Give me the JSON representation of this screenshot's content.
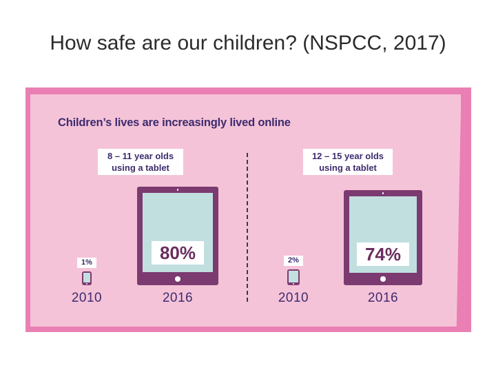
{
  "slide": {
    "title": "How safe are our children? (NSPCC, 2017)"
  },
  "colors": {
    "outer_frame": "#e97fb2",
    "panel": "#f5c3d8",
    "tablet_body": "#7b3a70",
    "tablet_screen": "#c2dfe0",
    "text_dark": "#3d2b6e"
  },
  "icons": [
    "tablet-icon"
  ],
  "chart_data": {
    "type": "pictograph",
    "title": "Children’s lives are increasingly lived online",
    "categories": [
      "2010",
      "2016"
    ],
    "groups": [
      {
        "label": "8 – 11 year olds using a tablet",
        "label_lines": [
          "8 – 11 year olds",
          "using a tablet"
        ],
        "values": [
          1,
          80
        ],
        "value_labels": [
          "1%",
          "80%"
        ]
      },
      {
        "label": "12 – 15 year olds using a tablet",
        "label_lines": [
          "12 – 15 year olds",
          "using a tablet"
        ],
        "values": [
          2,
          74
        ],
        "value_labels": [
          "2%",
          "74%"
        ]
      }
    ]
  }
}
